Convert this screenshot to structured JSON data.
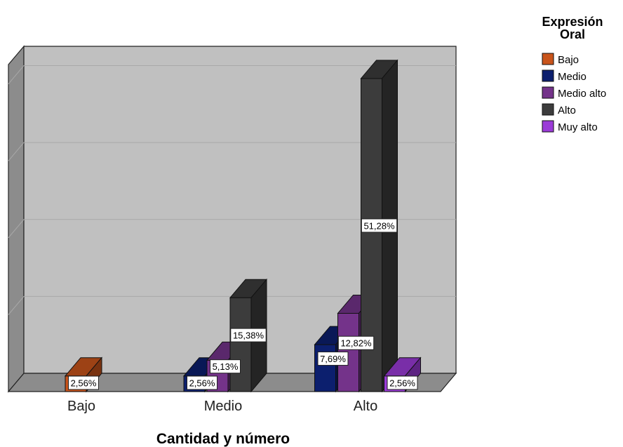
{
  "chart_data": {
    "type": "bar",
    "title": "",
    "xlabel": "Cantidad y número",
    "ylabel": "",
    "categories": [
      "Bajo",
      "Medio",
      "Alto"
    ],
    "legend_title": "Expresión Oral",
    "legend_title_lines": [
      "Expresión",
      "Oral"
    ],
    "legend_position": "top-right",
    "grid": true,
    "three_d": true,
    "ylim": [
      0,
      60
    ],
    "series": [
      {
        "name": "Bajo",
        "color": "#c9541b",
        "values": [
          2.56,
          null,
          null
        ],
        "labels": [
          "2,56%",
          "",
          ""
        ]
      },
      {
        "name": "Medio",
        "color": "#0c1f6e",
        "values": [
          null,
          2.56,
          7.69
        ],
        "labels": [
          "",
          "2,56%",
          "7,69%"
        ]
      },
      {
        "name": "Medio alto",
        "color": "#74338a",
        "values": [
          null,
          5.13,
          12.82
        ],
        "labels": [
          "",
          "5,13%",
          "12,82%"
        ]
      },
      {
        "name": "Alto",
        "color": "#3c3c3c",
        "values": [
          null,
          15.38,
          51.28
        ],
        "labels": [
          "",
          "15,38%",
          "51,28%"
        ]
      },
      {
        "name": "Muy alto",
        "color": "#9b3bd8",
        "values": [
          null,
          null,
          2.56
        ],
        "labels": [
          "",
          "",
          "2,56%"
        ]
      }
    ]
  }
}
